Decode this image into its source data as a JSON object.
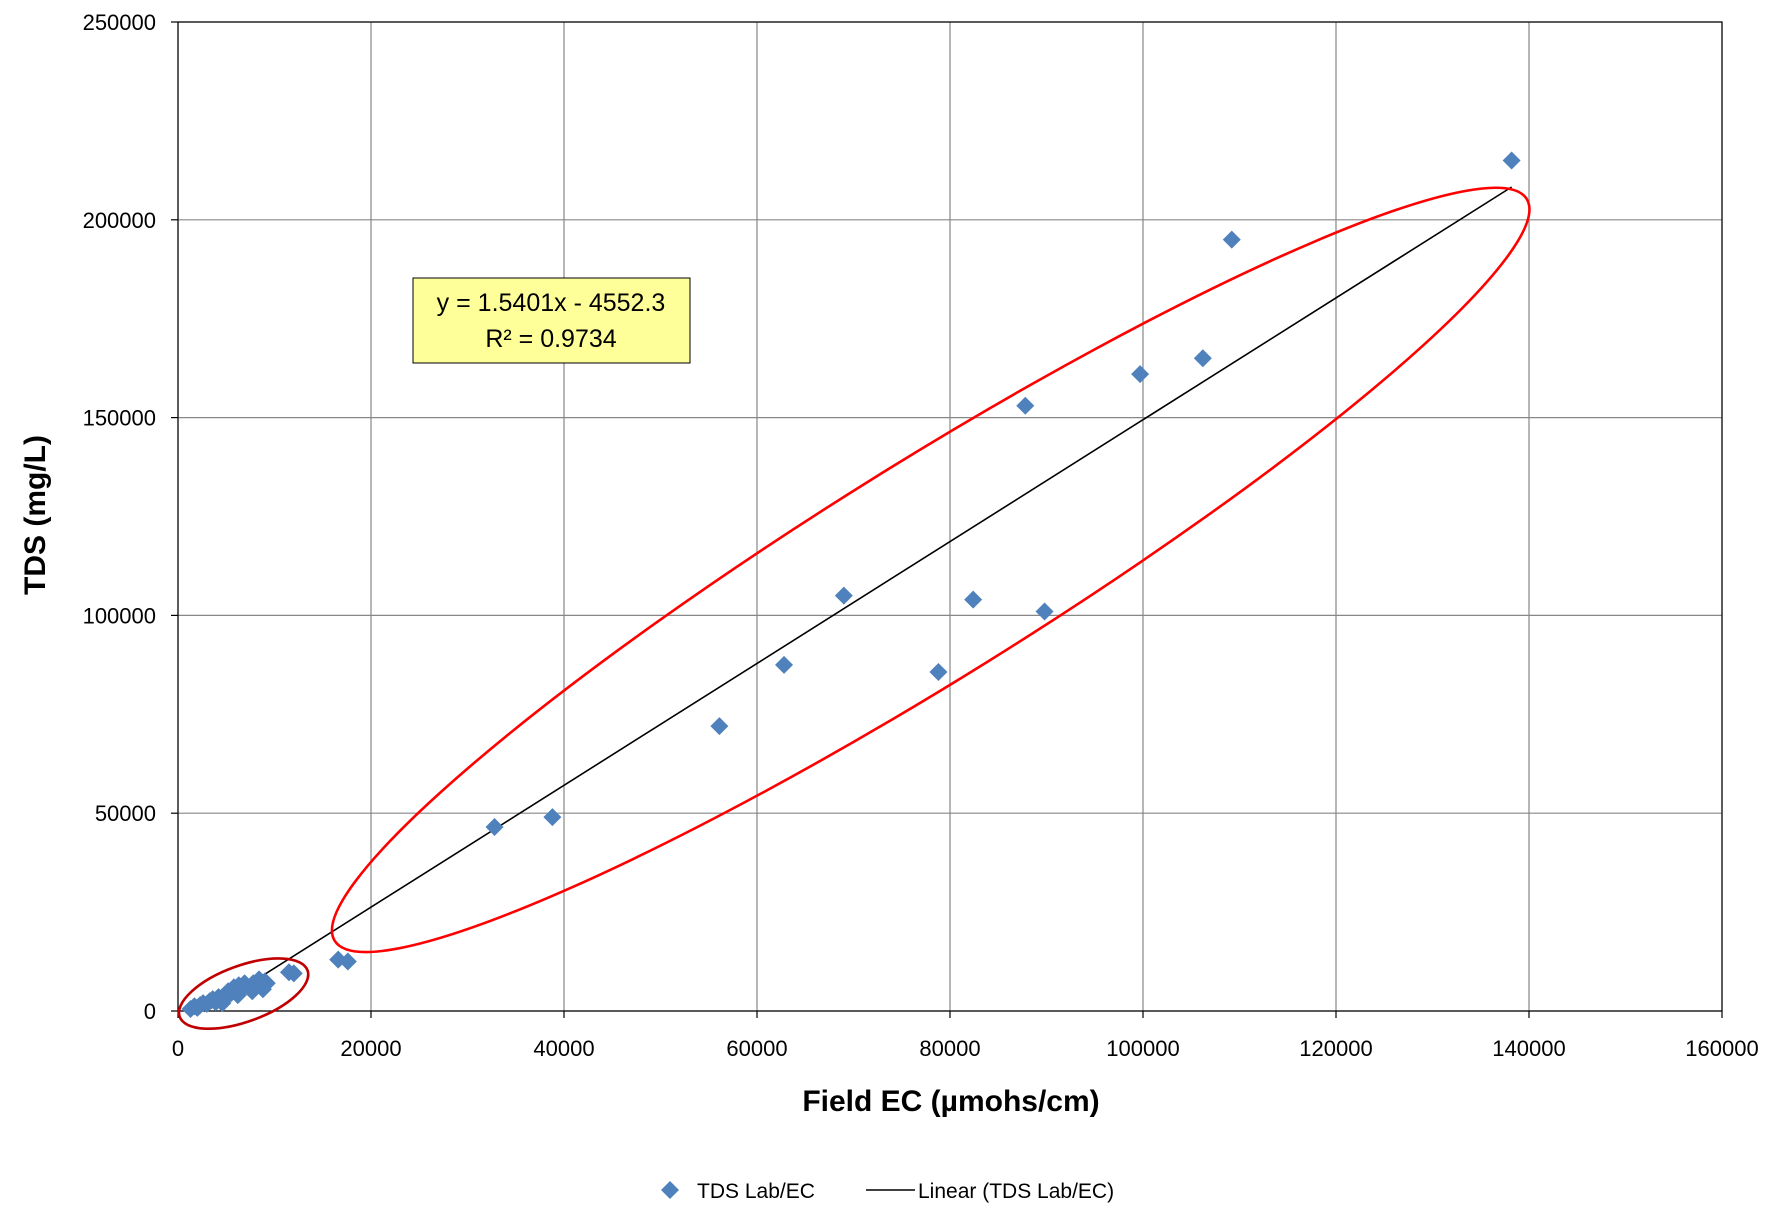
{
  "chart_data": {
    "type": "scatter",
    "xlabel": "Field EC  (µmohs/cm)",
    "ylabel": "TDS  (mg/L)",
    "xlim": [
      0,
      160000
    ],
    "ylim": [
      0,
      250000
    ],
    "xticks": [
      0,
      20000,
      40000,
      60000,
      80000,
      100000,
      120000,
      140000,
      160000
    ],
    "yticks": [
      0,
      50000,
      100000,
      150000,
      200000,
      250000
    ],
    "xtick_labels": [
      "0",
      "20000",
      "40000",
      "60000",
      "80000",
      "100000",
      "120000",
      "140000",
      "160000"
    ],
    "ytick_labels": [
      "0",
      "50000",
      "100000",
      "150000",
      "200000",
      "250000"
    ],
    "grid": true,
    "legend_position": "bottom",
    "series": [
      {
        "name": "TDS Lab/EC",
        "marker": "diamond",
        "color": "#4f81bd",
        "x": [
          1300,
          1700,
          2000,
          2300,
          2600,
          3000,
          3300,
          3600,
          3900,
          4200,
          4500,
          4800,
          5000,
          5200,
          5500,
          5800,
          6000,
          6300,
          6600,
          6900,
          7200,
          7500,
          7800,
          8100,
          8400,
          8700,
          9000,
          9200,
          4600,
          6200,
          7700,
          8800,
          11500,
          12000,
          16600,
          17600,
          32800,
          38800,
          56100,
          62800,
          69000,
          78800,
          82400,
          87800,
          89800,
          99700,
          106200,
          109200,
          138200
        ],
        "y": [
          500,
          1200,
          800,
          1500,
          2000,
          1800,
          2500,
          3000,
          2200,
          3500,
          2800,
          4000,
          3600,
          5000,
          4500,
          6000,
          5200,
          6500,
          5800,
          7000,
          6200,
          5500,
          7000,
          6000,
          8000,
          6500,
          7500,
          7000,
          2000,
          4000,
          5000,
          5500,
          9800,
          9500,
          13000,
          12500,
          46500,
          49000,
          72000,
          87500,
          105000,
          85700,
          104000,
          153000,
          101000,
          161000,
          165000,
          195000,
          215000
        ]
      }
    ],
    "trendline": {
      "name": "Linear (TDS Lab/EC)",
      "type": "linear",
      "slope": 1.5401,
      "intercept": -4552.3,
      "x_range": [
        2955.8,
        138200
      ],
      "color": "#000000"
    },
    "annotations": {
      "equation": "y = 1.5401x - 4552.3",
      "r_squared": "R² = 0.9734",
      "box_fill": "#ffff99",
      "highlight_color": "#ff0000",
      "highlight_small_color": "#c00000"
    },
    "legend": {
      "items": [
        {
          "label": "TDS Lab/EC",
          "symbol": "diamond"
        },
        {
          "label": "Linear (TDS Lab/EC)",
          "symbol": "line"
        }
      ]
    }
  }
}
